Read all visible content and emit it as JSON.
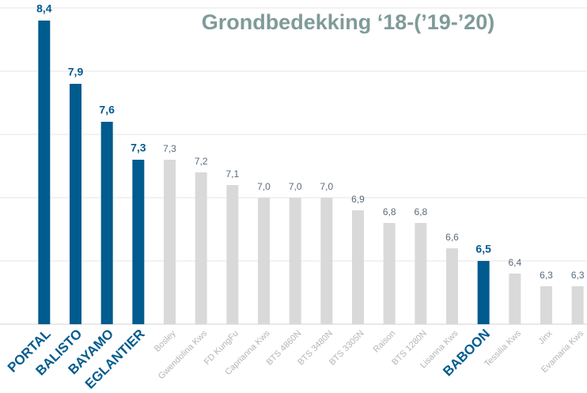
{
  "chart_data": {
    "type": "bar",
    "title": "Grondbedekking ‘18-(’19-’20)",
    "categories": [
      "PORTAL",
      "BALISTO",
      "BAYAMO",
      "EGLANTIER",
      "Bosley",
      "Gwendolina Kws",
      "FD KungFu",
      "Caprianna Kws",
      "BTS 4860N",
      "BTS 3480N",
      "BTS 3305N",
      "Raison",
      "BTS 1280N",
      "Lisanna Kws",
      "BABOON",
      "Tessilia Kws",
      "Jinx",
      "Evamaria Kws"
    ],
    "values": [
      8.4,
      7.9,
      7.6,
      7.3,
      7.3,
      7.2,
      7.1,
      7.0,
      7.0,
      7.0,
      6.9,
      6.8,
      6.8,
      6.6,
      6.5,
      6.4,
      6.3,
      6.3
    ],
    "value_labels": [
      "8,4",
      "7,9",
      "7,6",
      "7,3",
      "7,3",
      "7,2",
      "7,1",
      "7,0",
      "7,0",
      "7,0",
      "6,9",
      "6,8",
      "6,8",
      "6,6",
      "6,5",
      "6,4",
      "6,3",
      "6,3"
    ],
    "highlighted": [
      true,
      true,
      true,
      true,
      false,
      false,
      false,
      false,
      false,
      false,
      false,
      false,
      false,
      false,
      true,
      false,
      false,
      false
    ],
    "colors": [
      "#005b8f",
      "#005b8f",
      "#005b8f",
      "#005b8f",
      "#d9d9d9",
      "#d9d9d9",
      "#d9d9d9",
      "#d9d9d9",
      "#d9d9d9",
      "#d9d9d9",
      "#d9d9d9",
      "#d9d9d9",
      "#d9d9d9",
      "#d9d9d9",
      "#005b8f",
      "#d9d9d9",
      "#d9d9d9",
      "#d9d9d9"
    ],
    "ylim": [
      6,
      8.5
    ],
    "yticks": [
      6,
      6.5,
      7,
      7.5,
      8,
      8.5
    ],
    "grid": true
  }
}
